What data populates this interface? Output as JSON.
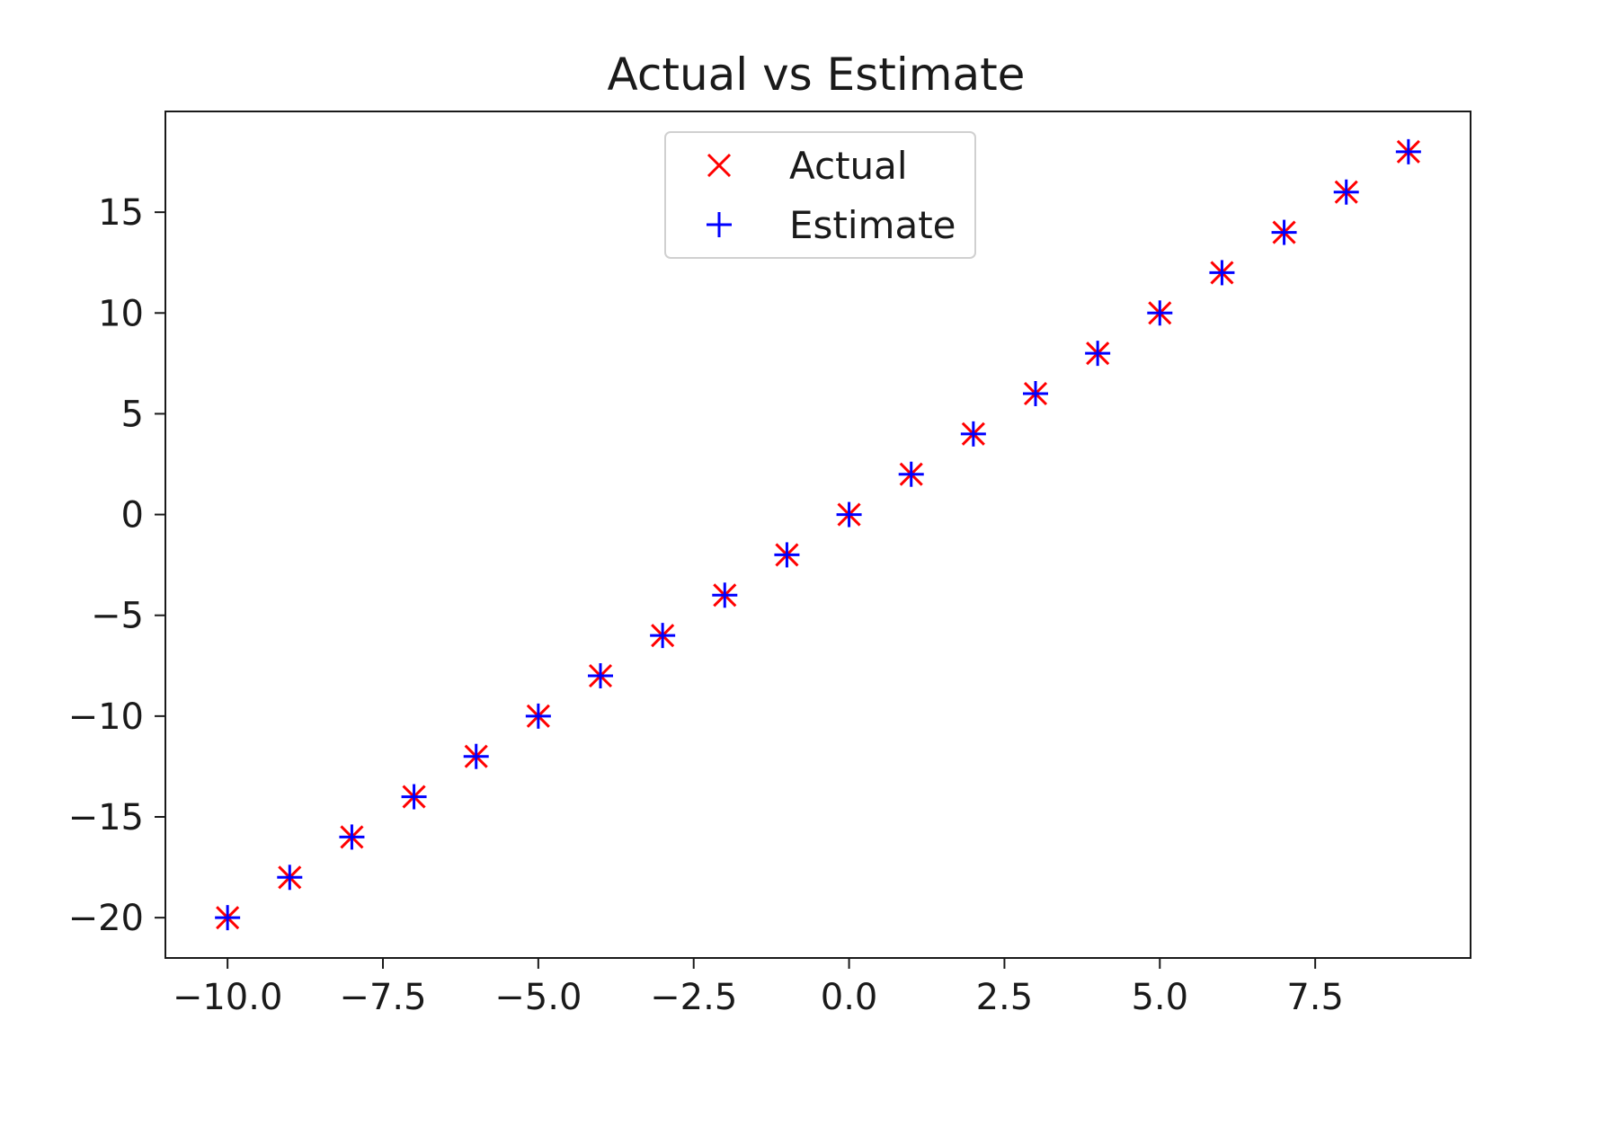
{
  "chart_data": {
    "type": "scatter",
    "title": "Actual vs Estimate",
    "xlabel": "",
    "ylabel": "",
    "xlim": [
      -11.0,
      10.0
    ],
    "ylim": [
      -22.0,
      20.0
    ],
    "grid": false,
    "legend_position": "top-center",
    "x_ticks": [
      -10.0,
      -7.5,
      -5.0,
      -2.5,
      0.0,
      2.5,
      5.0,
      7.5
    ],
    "x_tick_labels": [
      "−10.0",
      "−7.5",
      "−5.0",
      "−2.5",
      "0.0",
      "2.5",
      "5.0",
      "7.5"
    ],
    "y_ticks": [
      -20,
      -15,
      -10,
      -5,
      0,
      5,
      10,
      15
    ],
    "y_tick_labels": [
      "−20",
      "−15",
      "−10",
      "−5",
      "0",
      "5",
      "10",
      "15"
    ],
    "series": [
      {
        "name": "Actual",
        "marker": "x",
        "color": "#ff0000",
        "x": [
          -10,
          -9,
          -8,
          -7,
          -6,
          -5,
          -4,
          -3,
          -2,
          -1,
          0,
          1,
          2,
          3,
          4,
          5,
          6,
          7,
          8,
          9
        ],
        "y": [
          -20,
          -18,
          -16,
          -14,
          -12,
          -10,
          -8,
          -6,
          -4,
          -2,
          0,
          2,
          4,
          6,
          8,
          10,
          12,
          14,
          16,
          18
        ]
      },
      {
        "name": "Estimate",
        "marker": "+",
        "color": "#0000ff",
        "x": [
          -10,
          -9,
          -8,
          -7,
          -6,
          -5,
          -4,
          -3,
          -2,
          -1,
          0,
          1,
          2,
          3,
          4,
          5,
          6,
          7,
          8,
          9
        ],
        "y": [
          -20,
          -18,
          -16,
          -14,
          -12,
          -10,
          -8,
          -6,
          -4,
          -2,
          0,
          2,
          4,
          6,
          8,
          10,
          12,
          14,
          16,
          18
        ]
      }
    ]
  }
}
